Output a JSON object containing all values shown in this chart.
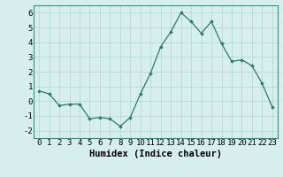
{
  "x": [
    0,
    1,
    2,
    3,
    4,
    5,
    6,
    7,
    8,
    9,
    10,
    11,
    12,
    13,
    14,
    15,
    16,
    17,
    18,
    19,
    20,
    21,
    22,
    23
  ],
  "y": [
    0.7,
    0.5,
    -0.3,
    -0.2,
    -0.2,
    -1.2,
    -1.1,
    -1.2,
    -1.7,
    -1.1,
    0.5,
    1.9,
    3.7,
    4.7,
    6.0,
    5.4,
    4.6,
    5.4,
    3.9,
    2.7,
    2.8,
    2.4,
    1.2,
    -0.4
  ],
  "line_color": "#2d7a6e",
  "marker": "D",
  "marker_size": 1.8,
  "bg_color": "#d6eeee",
  "grid_color": "#b8d8d8",
  "xlabel": "Humidex (Indice chaleur)",
  "ylim": [
    -2.5,
    6.5
  ],
  "xlim": [
    -0.5,
    23.5
  ],
  "yticks": [
    -2,
    -1,
    0,
    1,
    2,
    3,
    4,
    5,
    6
  ],
  "xtick_labels": [
    "0",
    "1",
    "2",
    "3",
    "4",
    "5",
    "6",
    "7",
    "8",
    "9",
    "10",
    "11",
    "12",
    "13",
    "14",
    "15",
    "16",
    "17",
    "18",
    "19",
    "20",
    "21",
    "22",
    "23"
  ],
  "xlabel_fontsize": 7.5,
  "tick_fontsize": 6.5,
  "linewidth": 0.9
}
